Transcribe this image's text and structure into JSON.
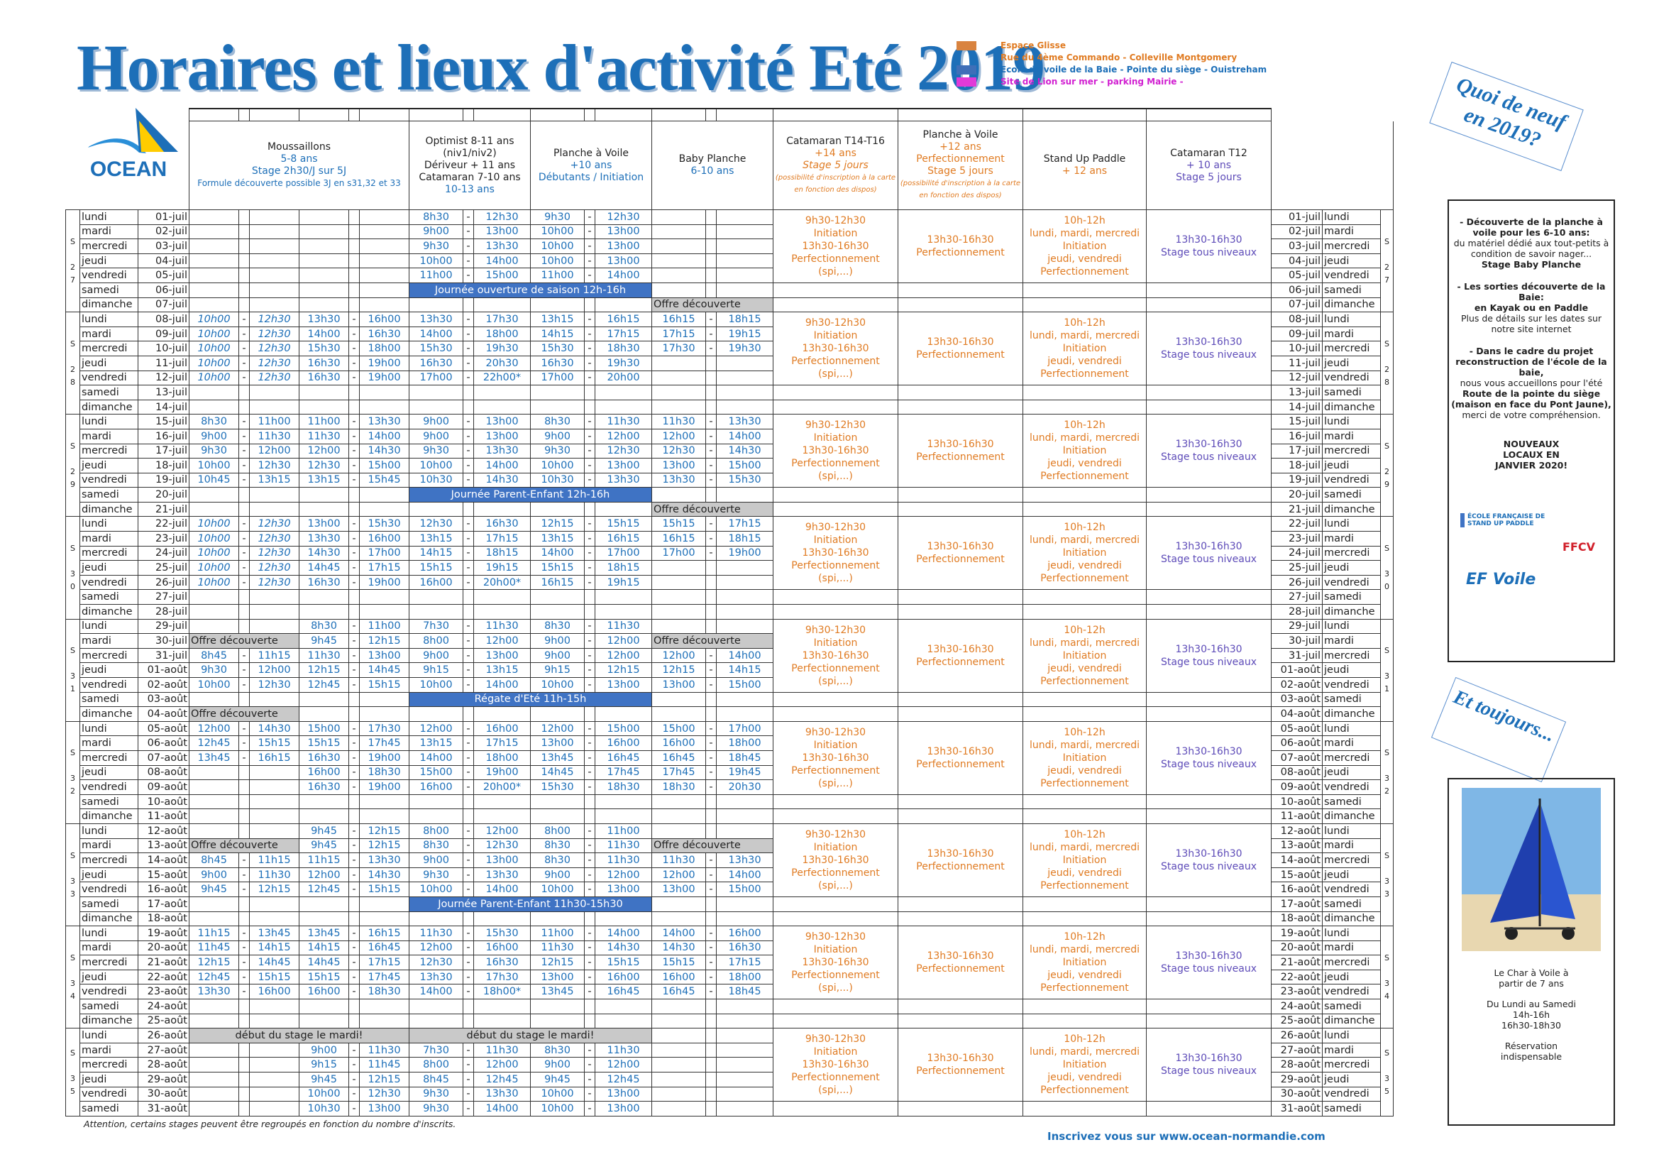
{
  "title": "Horaires et lieux d'activité Eté 2019",
  "legend": [
    {
      "color": "#d9833f",
      "text": "Espace Glisse",
      "text_color": "#e07b22"
    },
    {
      "color": "#d9833f",
      "text": "Rue du 4ème Commando - Colleville Montgomery",
      "text_color": "#e07b22"
    },
    {
      "color": "#3f6fb8",
      "text": "Ecole de voile de la Baie - Pointe du siège - Ouistreham",
      "text_color": "#1d6fb8"
    },
    {
      "color": "#e23ad8",
      "text": "Site de Lion sur mer - parking Mairie -",
      "text_color": "#d11fd1"
    }
  ],
  "logo_text": "OCEAN",
  "stamp1": "Quoi de neuf en 2019?",
  "stamp2": "Et toujours...",
  "headers": {
    "moussaillons": {
      "name": "Moussaillons",
      "age": "5-8 ans",
      "stage": "Stage 2h30/J sur 5J",
      "note": "Formule découverte possible 3J en s31,32 et 33"
    },
    "optimist": {
      "l1": "Optimist 8-11 ans",
      "l2": "(niv1/niv2)",
      "l3": "Dériveur + 11 ans",
      "l4": "Catamaran 7-10 ans",
      "l5": "10-13 ans"
    },
    "planche": {
      "name": "Planche à Voile",
      "age": "+10 ans",
      "level": "Débutants / Initiation"
    },
    "baby": {
      "name": "Baby Planche",
      "age": "6-10 ans"
    },
    "cata14": {
      "name": "Catamaran T14-T16",
      "age": "+14 ans",
      "stage": "Stage 5 jours",
      "note": "(possibilité d'inscription à la carte en fonction des dispos)"
    },
    "planche12": {
      "name": "Planche à Voile",
      "age": "+12 ans",
      "level": "Perfectionnement",
      "stage": "Stage 5 jours",
      "note": "(possibilité d'inscription à la carte en fonction des dispos)"
    },
    "sup": {
      "name": "Stand Up Paddle",
      "age": "+ 12 ans"
    },
    "cata12": {
      "name": "Catamaran T12",
      "age": "+ 10 ans",
      "stage": "Stage 5 jours"
    }
  },
  "right_panel": {
    "p1": "- Découverte de la planche à voile pour les 6-10 ans:",
    "p2": "du matériel dédié aux tout-petits à condition de savoir nager...",
    "p3": "Stage Baby Planche",
    "p4": "- Les sorties découverte de la Baie:",
    "p5": "en Kayak ou en Paddle",
    "p6": "Plus de détails sur les dates sur notre site internet",
    "p7": "- Dans le cadre du projet reconstruction de l'école de la baie,",
    "p8": "nous vous accueillons pour l'été",
    "p9": "Route de la pointe du siège (maison en face du Pont Jaune),",
    "p10": "merci de votre compréhension.",
    "p11": "NOUVEAUX LOCAUX EN JANVIER 2020!",
    "logo1": "ÉCOLE FRANÇAISE DE STAND UP PADDLE",
    "logo2": "EF Voile",
    "logo3": "FFCV"
  },
  "right_panel2": {
    "caption": "Le Char à Voile à partir de 7 ans",
    "days": "Du Lundi au Samedi",
    "h1": "14h-16h",
    "h2": "16h30-18h30",
    "res": "Réservation indispensable"
  },
  "footnote": "Attention, certains stages peuvent être regroupés en fonction du nombre d'inscrits.",
  "site": "Inscrivez vous sur www.ocean-normandie.com",
  "merged": {
    "cata14": [
      "9h30-12h30",
      "Initiation",
      "13h30-16h30",
      "Perfectionnement",
      "(spi,...)"
    ],
    "planche12": "13h30-16h30 Perfectionnement",
    "sup": [
      "10h-12h",
      "lundi, mardi, mercredi",
      "Initiation",
      "jeudi, vendredi",
      "Perfectionnement"
    ],
    "cata12": [
      "13h30-16h30",
      "Stage tous niveaux"
    ]
  },
  "weeks": [
    {
      "num": "27",
      "days": [
        {
          "d": "lundi",
          "date": "01-juil",
          "m1": "",
          "m2": "",
          "o1": "8h30",
          "o2": "12h30",
          "p1": "9h30",
          "p2": "12h30",
          "b1": "",
          "b2": ""
        },
        {
          "d": "mardi",
          "date": "02-juil",
          "o1": "9h00",
          "o2": "13h00",
          "p1": "10h00",
          "p2": "13h00"
        },
        {
          "d": "mercredi",
          "date": "03-juil",
          "o1": "9h30",
          "o2": "13h30",
          "p1": "10h00",
          "p2": "13h00"
        },
        {
          "d": "jeudi",
          "date": "04-juil",
          "o1": "10h00",
          "o2": "14h00",
          "p1": "10h00",
          "p2": "13h00"
        },
        {
          "d": "vendredi",
          "date": "05-juil",
          "o1": "11h00",
          "o2": "15h00",
          "p1": "11h00",
          "p2": "14h00"
        },
        {
          "d": "samedi",
          "date": "06-juil",
          "band": "Journée ouverture de saison 12h-16h"
        },
        {
          "d": "dimanche",
          "date": "07-juil",
          "babyoffre": "Offre découverte"
        }
      ]
    },
    {
      "num": "28",
      "days": [
        {
          "d": "lundi",
          "date": "08-juil",
          "m1": "10h00",
          "m2": "12h30",
          "m3": "13h30",
          "m4": "16h00",
          "o1": "13h30",
          "o2": "17h30",
          "p1": "13h15",
          "p2": "16h15",
          "b1": "16h15",
          "b2": "18h15"
        },
        {
          "d": "mardi",
          "date": "09-juil",
          "m1": "10h00",
          "m2": "12h30",
          "m3": "14h00",
          "m4": "16h30",
          "o1": "14h00",
          "o2": "18h00",
          "p1": "14h15",
          "p2": "17h15",
          "b1": "17h15",
          "b2": "19h15"
        },
        {
          "d": "mercredi",
          "date": "10-juil",
          "m1": "10h00",
          "m2": "12h30",
          "m3": "15h30",
          "m4": "18h00",
          "o1": "15h30",
          "o2": "19h30",
          "p1": "15h30",
          "p2": "18h30",
          "b1": "17h30",
          "b2": "19h30"
        },
        {
          "d": "jeudi",
          "date": "11-juil",
          "m1": "10h00",
          "m2": "12h30",
          "m3": "16h30",
          "m4": "19h00",
          "o1": "16h30",
          "o2": "20h30",
          "p1": "16h30",
          "p2": "19h30"
        },
        {
          "d": "vendredi",
          "date": "12-juil",
          "m1": "10h00",
          "m2": "12h30",
          "m3": "16h30",
          "m4": "19h00",
          "o1": "17h00",
          "o2": "22h00*",
          "p1": "17h00",
          "p2": "20h00"
        },
        {
          "d": "samedi",
          "date": "13-juil"
        },
        {
          "d": "dimanche",
          "date": "14-juil"
        }
      ]
    },
    {
      "num": "29",
      "days": [
        {
          "d": "lundi",
          "date": "15-juil",
          "m1": "8h30",
          "m2": "11h00",
          "m3": "11h00",
          "m4": "13h30",
          "o1": "9h00",
          "o2": "13h00",
          "p1": "8h30",
          "p2": "11h30",
          "b1": "11h30",
          "b2": "13h30"
        },
        {
          "d": "mardi",
          "date": "16-juil",
          "m1": "9h00",
          "m2": "11h30",
          "m3": "11h30",
          "m4": "14h00",
          "o1": "9h00",
          "o2": "13h00",
          "p1": "9h00",
          "p2": "12h00",
          "b1": "12h00",
          "b2": "14h00"
        },
        {
          "d": "mercredi",
          "date": "17-juil",
          "m1": "9h30",
          "m2": "12h00",
          "m3": "12h00",
          "m4": "14h30",
          "o1": "9h30",
          "o2": "13h30",
          "p1": "9h30",
          "p2": "12h30",
          "b1": "12h30",
          "b2": "14h30"
        },
        {
          "d": "jeudi",
          "date": "18-juil",
          "m1": "10h00",
          "m2": "12h30",
          "m3": "12h30",
          "m4": "15h00",
          "o1": "10h00",
          "o2": "14h00",
          "p1": "10h00",
          "p2": "13h00",
          "b1": "13h00",
          "b2": "15h00"
        },
        {
          "d": "vendredi",
          "date": "19-juil",
          "m1": "10h45",
          "m2": "13h15",
          "m3": "13h15",
          "m4": "15h45",
          "o1": "10h30",
          "o2": "14h30",
          "p1": "10h30",
          "p2": "13h30",
          "b1": "13h30",
          "b2": "15h30"
        },
        {
          "d": "samedi",
          "date": "20-juil",
          "band": "Journée Parent-Enfant 12h-16h"
        },
        {
          "d": "dimanche",
          "date": "21-juil",
          "babyoffre": "Offre découverte"
        }
      ]
    },
    {
      "num": "30",
      "days": [
        {
          "d": "lundi",
          "date": "22-juil",
          "m1": "10h00",
          "m2": "12h30",
          "m3": "13h00",
          "m4": "15h30",
          "o1": "12h30",
          "o2": "16h30",
          "p1": "12h15",
          "p2": "15h15",
          "b1": "15h15",
          "b2": "17h15"
        },
        {
          "d": "mardi",
          "date": "23-juil",
          "m1": "10h00",
          "m2": "12h30",
          "m3": "13h30",
          "m4": "16h00",
          "o1": "13h15",
          "o2": "17h15",
          "p1": "13h15",
          "p2": "16h15",
          "b1": "16h15",
          "b2": "18h15"
        },
        {
          "d": "mercredi",
          "date": "24-juil",
          "m1": "10h00",
          "m2": "12h30",
          "m3": "14h30",
          "m4": "17h00",
          "o1": "14h15",
          "o2": "18h15",
          "p1": "14h00",
          "p2": "17h00",
          "b1": "17h00",
          "b2": "19h00"
        },
        {
          "d": "jeudi",
          "date": "25-juil",
          "m1": "10h00",
          "m2": "12h30",
          "m3": "14h45",
          "m4": "17h15",
          "o1": "15h15",
          "o2": "19h15",
          "p1": "15h15",
          "p2": "18h15"
        },
        {
          "d": "vendredi",
          "date": "26-juil",
          "m1": "10h00",
          "m2": "12h30",
          "m3": "16h30",
          "m4": "19h00",
          "o1": "16h00",
          "o2": "20h00*",
          "p1": "16h15",
          "p2": "19h15"
        },
        {
          "d": "samedi",
          "date": "27-juil"
        },
        {
          "d": "dimanche",
          "date": "28-juil"
        }
      ]
    },
    {
      "num": "31",
      "days": [
        {
          "d": "lundi",
          "date": "29-juil",
          "m3": "8h30",
          "m4": "11h00",
          "o1": "7h30",
          "o2": "11h30",
          "p1": "8h30",
          "p2": "11h30"
        },
        {
          "d": "mardi",
          "date": "30-juil",
          "moffre": "Offre découverte",
          "m3": "9h45",
          "m4": "12h15",
          "o1": "8h00",
          "o2": "12h00",
          "p1": "9h00",
          "p2": "12h00",
          "babyoffre": "Offre découverte"
        },
        {
          "d": "mercredi",
          "date": "31-juil",
          "m1": "8h45",
          "m2": "11h15",
          "m3": "11h30",
          "m4": "13h00",
          "o1": "9h00",
          "o2": "13h00",
          "p1": "9h00",
          "p2": "12h00",
          "b1": "12h00",
          "b2": "14h00"
        },
        {
          "d": "jeudi",
          "date": "01-août",
          "m1": "9h30",
          "m2": "12h00",
          "m3": "12h15",
          "m4": "14h45",
          "o1": "9h15",
          "o2": "13h15",
          "p1": "9h15",
          "p2": "12h15",
          "b1": "12h15",
          "b2": "14h15"
        },
        {
          "d": "vendredi",
          "date": "02-août",
          "m1": "10h00",
          "m2": "12h30",
          "m3": "12h45",
          "m4": "15h15",
          "o1": "10h00",
          "o2": "14h00",
          "p1": "10h00",
          "p2": "13h00",
          "b1": "13h00",
          "b2": "15h00"
        },
        {
          "d": "samedi",
          "date": "03-août",
          "band": "Régate d'Eté 11h-15h"
        },
        {
          "d": "dimanche",
          "date": "04-août",
          "moffre": "Offre découverte"
        }
      ]
    },
    {
      "num": "32",
      "days": [
        {
          "d": "lundi",
          "date": "05-août",
          "m1": "12h00",
          "m2": "14h30",
          "m3": "15h00",
          "m4": "17h30",
          "o1": "12h00",
          "o2": "16h00",
          "p1": "12h00",
          "p2": "15h00",
          "b1": "15h00",
          "b2": "17h00"
        },
        {
          "d": "mardi",
          "date": "06-août",
          "m1": "12h45",
          "m2": "15h15",
          "m3": "15h15",
          "m4": "17h45",
          "o1": "13h15",
          "o2": "17h15",
          "p1": "13h00",
          "p2": "16h00",
          "b1": "16h00",
          "b2": "18h00"
        },
        {
          "d": "mercredi",
          "date": "07-août",
          "m1": "13h45",
          "m2": "16h15",
          "m3": "16h30",
          "m4": "19h00",
          "o1": "14h00",
          "o2": "18h00",
          "p1": "13h45",
          "p2": "16h45",
          "b1": "16h45",
          "b2": "18h45"
        },
        {
          "d": "jeudi",
          "date": "08-août",
          "m3": "16h00",
          "m4": "18h30",
          "o1": "15h00",
          "o2": "19h00",
          "p1": "14h45",
          "p2": "17h45",
          "b1": "17h45",
          "b2": "19h45"
        },
        {
          "d": "vendredi",
          "date": "09-août",
          "m3": "16h30",
          "m4": "19h00",
          "o1": "16h00",
          "o2": "20h00*",
          "p1": "15h30",
          "p2": "18h30",
          "b1": "18h30",
          "b2": "20h30"
        },
        {
          "d": "samedi",
          "date": "10-août"
        },
        {
          "d": "dimanche",
          "date": "11-août"
        }
      ]
    },
    {
      "num": "33",
      "days": [
        {
          "d": "lundi",
          "date": "12-août",
          "m3": "9h45",
          "m4": "12h15",
          "o1": "8h00",
          "o2": "12h00",
          "p1": "8h00",
          "p2": "11h00"
        },
        {
          "d": "mardi",
          "date": "13-août",
          "moffre": "Offre découverte",
          "m3": "9h45",
          "m4": "12h15",
          "o1": "8h30",
          "o2": "12h30",
          "p1": "8h30",
          "p2": "11h30",
          "babyoffre": "Offre découverte"
        },
        {
          "d": "mercredi",
          "date": "14-août",
          "m1": "8h45",
          "m2": "11h15",
          "m3": "11h15",
          "m4": "13h30",
          "o1": "9h00",
          "o2": "13h00",
          "p1": "8h30",
          "p2": "11h30",
          "b1": "11h30",
          "b2": "13h30"
        },
        {
          "d": "jeudi",
          "date": "15-août",
          "m1": "9h00",
          "m2": "11h30",
          "m3": "12h00",
          "m4": "14h30",
          "o1": "9h30",
          "o2": "13h30",
          "p1": "9h00",
          "p2": "12h00",
          "b1": "12h00",
          "b2": "14h00"
        },
        {
          "d": "vendredi",
          "date": "16-août",
          "m1": "9h45",
          "m2": "12h15",
          "m3": "12h45",
          "m4": "15h15",
          "o1": "10h00",
          "o2": "14h00",
          "p1": "10h00",
          "p2": "13h00",
          "b1": "13h00",
          "b2": "15h00"
        },
        {
          "d": "samedi",
          "date": "17-août",
          "band": "Journée Parent-Enfant 11h30-15h30"
        },
        {
          "d": "dimanche",
          "date": "18-août"
        }
      ]
    },
    {
      "num": "34",
      "days": [
        {
          "d": "lundi",
          "date": "19-août",
          "m1": "11h15",
          "m2": "13h45",
          "m3": "13h45",
          "m4": "16h15",
          "o1": "11h30",
          "o2": "15h30",
          "p1": "11h00",
          "p2": "14h00",
          "b1": "14h00",
          "b2": "16h00"
        },
        {
          "d": "mardi",
          "date": "20-août",
          "m1": "11h45",
          "m2": "14h15",
          "m3": "14h15",
          "m4": "16h45",
          "o1": "12h00",
          "o2": "16h00",
          "p1": "11h30",
          "p2": "14h30",
          "b1": "14h30",
          "b2": "16h30"
        },
        {
          "d": "mercredi",
          "date": "21-août",
          "m1": "12h15",
          "m2": "14h45",
          "m3": "14h45",
          "m4": "17h15",
          "o1": "12h30",
          "o2": "16h30",
          "p1": "12h15",
          "p2": "15h15",
          "b1": "15h15",
          "b2": "17h15"
        },
        {
          "d": "jeudi",
          "date": "22-août",
          "m1": "12h45",
          "m2": "15h15",
          "m3": "15h15",
          "m4": "17h45",
          "o1": "13h30",
          "o2": "17h30",
          "p1": "13h00",
          "p2": "16h00",
          "b1": "16h00",
          "b2": "18h00"
        },
        {
          "d": "vendredi",
          "date": "23-août",
          "m1": "13h30",
          "m2": "16h00",
          "m3": "16h00",
          "m4": "18h30",
          "o1": "14h00",
          "o2": "18h00*",
          "p1": "13h45",
          "p2": "16h45",
          "b1": "16h45",
          "b2": "18h45"
        },
        {
          "d": "samedi",
          "date": "24-août"
        },
        {
          "d": "dimanche",
          "date": "25-août"
        }
      ]
    },
    {
      "num": "35",
      "days": [
        {
          "d": "lundi",
          "date": "26-août",
          "mgrey": "début du stage le mardi!",
          "ogrey": "début du stage le mardi!"
        },
        {
          "d": "mardi",
          "date": "27-août",
          "m3": "9h00",
          "m4": "11h30",
          "o1": "7h30",
          "o2": "11h30",
          "p1": "8h30",
          "p2": "11h30"
        },
        {
          "d": "mercredi",
          "date": "28-août",
          "m3": "9h15",
          "m4": "11h45",
          "o1": "8h00",
          "o2": "12h00",
          "p1": "9h00",
          "p2": "12h00"
        },
        {
          "d": "jeudi",
          "date": "29-août",
          "m3": "9h45",
          "m4": "12h15",
          "o1": "8h45",
          "o2": "12h45",
          "p1": "9h45",
          "p2": "12h45"
        },
        {
          "d": "vendredi",
          "date": "30-août",
          "m3": "10h00",
          "m4": "12h30",
          "o1": "9h30",
          "o2": "13h30",
          "p1": "10h00",
          "p2": "13h00"
        },
        {
          "d": "samedi",
          "date": "31-août",
          "m3": "10h30",
          "m4": "13h00",
          "o1": "9h30",
          "o2": "14h00",
          "p1": "10h00",
          "p2": "13h00"
        }
      ]
    }
  ]
}
